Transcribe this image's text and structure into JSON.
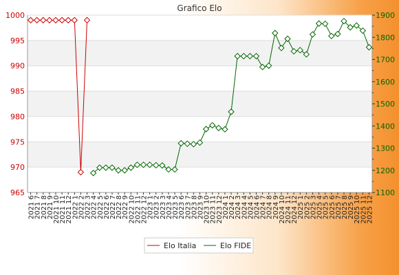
{
  "chart_data": {
    "type": "line",
    "title": "Grafico Elo",
    "categories": [
      "2021 6",
      "2021 7",
      "2021 8",
      "2021 9",
      "2021 10",
      "2021 11",
      "2021 12",
      "2022 1",
      "2022 2",
      "2022 3",
      "2022 4",
      "2022 5",
      "2022 6",
      "2022 7",
      "2022 8",
      "2022 9",
      "2022 10",
      "2022 11",
      "2022 12",
      "2023 1",
      "2023 2",
      "2023 3",
      "2023 4",
      "2023 5",
      "2023 6",
      "2023 7",
      "2023 8",
      "2023 9",
      "2023 10",
      "2023 11",
      "2023 12",
      "2024 1",
      "2024 2",
      "2024 3",
      "2024 4",
      "2024 5",
      "2024 6",
      "2024 7",
      "2024 8",
      "2024 9",
      "2024 10",
      "2024 11",
      "2024 12",
      "2025 1",
      "2025 2",
      "2025 3",
      "2025 4",
      "2025 5",
      "2025 6",
      "2025 7",
      "2025 8",
      "2025 9",
      "2025 10",
      "2025 11",
      "2025 12"
    ],
    "series": [
      {
        "name": "Elo Italia",
        "axis": "left",
        "color": "#cc0000",
        "values": [
          999,
          999,
          999,
          999,
          999,
          999,
          999,
          999,
          969,
          999,
          null,
          null,
          null,
          null,
          null,
          null,
          null,
          null,
          null,
          null,
          null,
          null,
          null,
          null,
          null,
          null,
          null,
          null,
          null,
          null,
          null,
          null,
          null,
          null,
          null,
          null,
          null,
          null,
          null,
          null,
          null,
          null,
          null,
          null,
          null,
          null,
          null,
          null,
          null,
          null,
          null,
          null,
          null,
          null,
          null
        ]
      },
      {
        "name": "Elo FIDE",
        "axis": "right",
        "color": "#006600",
        "values": [
          null,
          null,
          null,
          null,
          null,
          null,
          null,
          null,
          null,
          null,
          1188,
          1212,
          1212,
          1212,
          1200,
          1200,
          1212,
          1225,
          1225,
          1225,
          1223,
          1222,
          1204,
          1204,
          1322,
          1320,
          1318,
          1325,
          1386,
          1403,
          1391,
          1385,
          1464,
          1715,
          1715,
          1715,
          1715,
          1666,
          1672,
          1819,
          1752,
          1793,
          1737,
          1742,
          1723,
          1813,
          1862,
          1861,
          1806,
          1815,
          1873,
          1845,
          1853,
          1830,
          1755
        ]
      }
    ],
    "y_left": {
      "min": 965,
      "max": 1000,
      "ticks": [
        965,
        970,
        975,
        980,
        985,
        990,
        995,
        1000
      ]
    },
    "y_right": {
      "min": 1100,
      "max": 1900,
      "ticks": [
        1100,
        1200,
        1300,
        1400,
        1500,
        1600,
        1700,
        1800,
        1900
      ]
    },
    "grid": true,
    "legend_position": "bottom"
  }
}
